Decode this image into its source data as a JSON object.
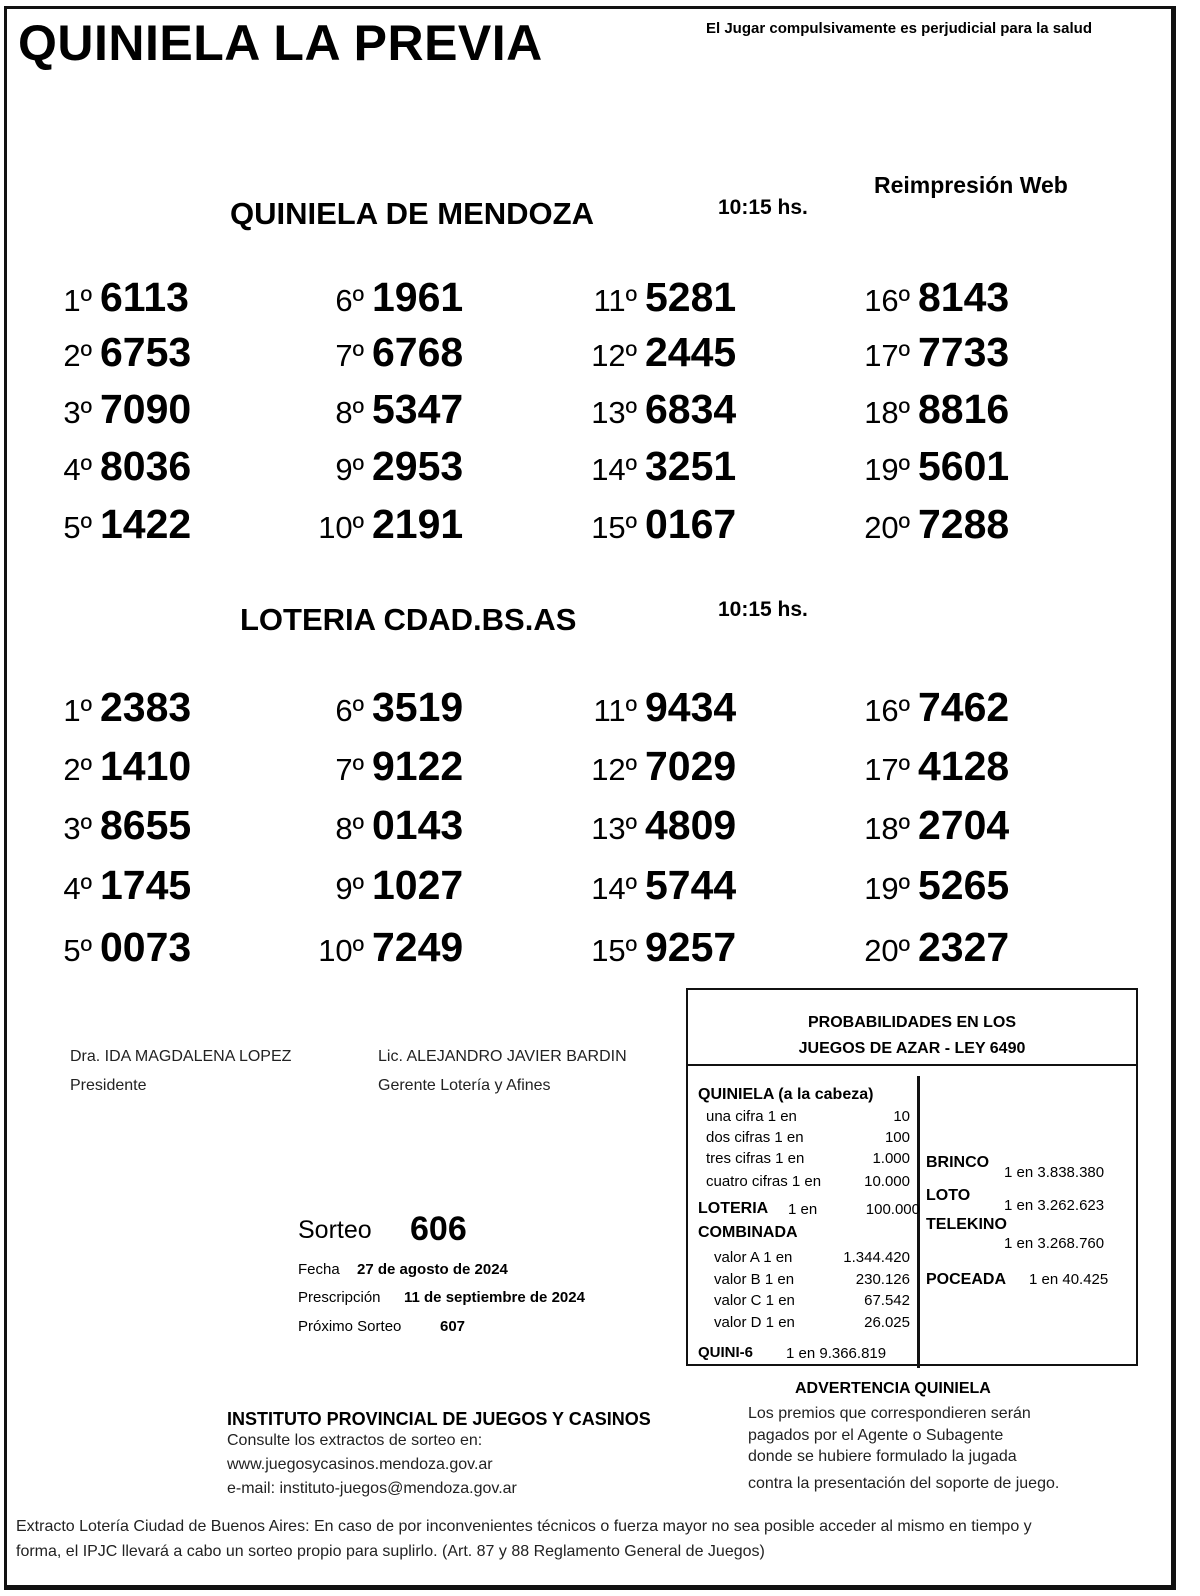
{
  "header": {
    "title": "QUINIELA LA PREVIA",
    "warning": "El Jugar compulsivamente es perjudicial para la salud",
    "reprint": "Reimpresión Web"
  },
  "draws": [
    {
      "title": "QUINIELA  DE MENDOZA",
      "time": "10:15 hs.",
      "results": [
        {
          "pos": "1º",
          "num": "6113"
        },
        {
          "pos": "2º",
          "num": "6753"
        },
        {
          "pos": "3º",
          "num": "7090"
        },
        {
          "pos": "4º",
          "num": "8036"
        },
        {
          "pos": "5º",
          "num": "1422"
        },
        {
          "pos": "6º",
          "num": "1961"
        },
        {
          "pos": "7º",
          "num": "6768"
        },
        {
          "pos": "8º",
          "num": "5347"
        },
        {
          "pos": "9º",
          "num": "2953"
        },
        {
          "pos": "10º",
          "num": "2191"
        },
        {
          "pos": "11º",
          "num": "5281"
        },
        {
          "pos": "12º",
          "num": "2445"
        },
        {
          "pos": "13º",
          "num": "6834"
        },
        {
          "pos": "14º",
          "num": "3251"
        },
        {
          "pos": "15º",
          "num": "0167"
        },
        {
          "pos": "16º",
          "num": "8143"
        },
        {
          "pos": "17º",
          "num": "7733"
        },
        {
          "pos": "18º",
          "num": "8816"
        },
        {
          "pos": "19º",
          "num": "5601"
        },
        {
          "pos": "20º",
          "num": "7288"
        }
      ]
    },
    {
      "title": "LOTERIA CDAD.BS.AS",
      "time": "10:15 hs.",
      "results": [
        {
          "pos": "1º",
          "num": "2383"
        },
        {
          "pos": "2º",
          "num": "1410"
        },
        {
          "pos": "3º",
          "num": "8655"
        },
        {
          "pos": "4º",
          "num": "1745"
        },
        {
          "pos": "5º",
          "num": "0073"
        },
        {
          "pos": "6º",
          "num": "3519"
        },
        {
          "pos": "7º",
          "num": "9122"
        },
        {
          "pos": "8º",
          "num": "0143"
        },
        {
          "pos": "9º",
          "num": "1027"
        },
        {
          "pos": "10º",
          "num": "7249"
        },
        {
          "pos": "11º",
          "num": "9434"
        },
        {
          "pos": "12º",
          "num": "7029"
        },
        {
          "pos": "13º",
          "num": "4809"
        },
        {
          "pos": "14º",
          "num": "5744"
        },
        {
          "pos": "15º",
          "num": "9257"
        },
        {
          "pos": "16º",
          "num": "7462"
        },
        {
          "pos": "17º",
          "num": "4128"
        },
        {
          "pos": "18º",
          "num": "2704"
        },
        {
          "pos": "19º",
          "num": "5265"
        },
        {
          "pos": "20º",
          "num": "2327"
        }
      ]
    }
  ],
  "signatures": [
    {
      "name": "Dra. IDA MAGDALENA LOPEZ",
      "role": "Presidente"
    },
    {
      "name": "Lic. ALEJANDRO JAVIER BARDIN",
      "role": "Gerente Lotería y Afines"
    }
  ],
  "sorteo": {
    "label": "Sorteo",
    "number": "606",
    "fecha_label": "Fecha",
    "fecha": "27 de agosto de 2024",
    "presc_label": "Prescripción",
    "presc": "11 de septiembre de 2024",
    "prox_label": "Próximo Sorteo",
    "prox": "607"
  },
  "prob": {
    "title1": "PROBABILIDADES EN LOS",
    "title2": "JUEGOS DE AZAR - LEY 6490",
    "quiniela": "QUINIELA (a la cabeza)",
    "q_rows": [
      {
        "l": "una cifra  1 en",
        "v": "10"
      },
      {
        "l": "dos cifras 1 en",
        "v": "100"
      },
      {
        "l": "tres cifras 1 en",
        "v": "1.000"
      },
      {
        "l": "cuatro cifras 1 en",
        "v": "10.000"
      }
    ],
    "loteria": "LOTERIA",
    "loteria_en": "1 en",
    "loteria_v": "100.000",
    "combinada": "COMBINADA",
    "c_rows": [
      {
        "l": "valor A 1 en",
        "v": "1.344.420"
      },
      {
        "l": "valor B 1 en",
        "v": "230.126"
      },
      {
        "l": "valor C 1 en",
        "v": "67.542"
      },
      {
        "l": "valor D 1 en",
        "v": "26.025"
      }
    ],
    "quini6": "QUINI-6",
    "quini6_v": "1 en  9.366.819",
    "brinco": "BRINCO",
    "brinco_v": "1 en 3.838.380",
    "loto": "LOTO",
    "loto_v": "1 en 3.262.623",
    "telekino": "TELEKINO",
    "telekino_v": "1 en 3.268.760",
    "poceada": "POCEADA",
    "poceada_v": "1 en 40.425"
  },
  "advert": {
    "title": "ADVERTENCIA QUINIELA",
    "lines": [
      "Los premios que correspondieren serán",
      "pagados por el Agente o Subagente",
      "donde se hubiere formulado la jugada",
      "contra la presentación del soporte de juego."
    ]
  },
  "institute": {
    "name": "INSTITUTO PROVINCIAL DE JUEGOS Y CASINOS",
    "consult": "Consulte los extractos de sorteo en:",
    "web": "www.juegosycasinos.mendoza.gov.ar",
    "email": "e-mail:  instituto-juegos@mendoza.gov.ar"
  },
  "footer": {
    "line1": "Extracto Lotería Ciudad de Buenos Aires: En caso de por inconvenientes técnicos o fuerza mayor no sea posible acceder al mismo en tiempo y",
    "line2": "forma, el IPJC llevará a cabo un sorteo propio para suplirlo. (Art. 87 y 88 Reglamento General de Juegos)"
  }
}
